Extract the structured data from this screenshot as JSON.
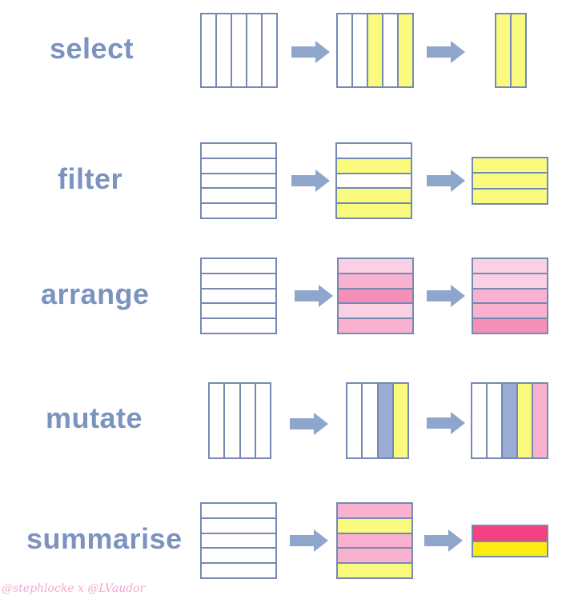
{
  "colors": {
    "border": "#7689b4",
    "verb_text": "#7b93bf",
    "arrow": "#8fa6cc",
    "yellow": "#fafa7e",
    "blue": "#9aacd1",
    "pink_light": "#fbd0e3",
    "pink_mid": "#f8b2d0",
    "pink_dark": "#f48fb9",
    "pink_summary": "#f3427f",
    "yellow_summary": "#fcea13",
    "credit_text": "#f0a6cf"
  },
  "rows": [
    {
      "verb": "select",
      "tables": [
        {
          "orientation": "cols",
          "cells": [
            "white",
            "white",
            "white",
            "white",
            "white"
          ]
        },
        {
          "orientation": "cols",
          "cells": [
            "white",
            "white",
            "yellow",
            "white",
            "yellow"
          ]
        },
        {
          "orientation": "cols",
          "cells": [
            "yellow",
            "yellow"
          ]
        }
      ]
    },
    {
      "verb": "filter",
      "tables": [
        {
          "orientation": "rows",
          "cells": [
            "white",
            "white",
            "white",
            "white",
            "white"
          ]
        },
        {
          "orientation": "rows",
          "cells": [
            "white",
            "yellow",
            "white",
            "yellow",
            "yellow"
          ]
        },
        {
          "orientation": "rows",
          "cells": [
            "yellow",
            "yellow",
            "yellow"
          ]
        }
      ]
    },
    {
      "verb": "arrange",
      "tables": [
        {
          "orientation": "rows",
          "cells": [
            "white",
            "white",
            "white",
            "white",
            "white"
          ]
        },
        {
          "orientation": "rows",
          "cells": [
            "pink_light",
            "pink_mid",
            "pink_dark",
            "pink_light",
            "pink_mid"
          ]
        },
        {
          "orientation": "rows",
          "cells": [
            "pink_light",
            "pink_light",
            "pink_mid",
            "pink_mid",
            "pink_dark"
          ]
        }
      ]
    },
    {
      "verb": "mutate",
      "tables": [
        {
          "orientation": "cols",
          "cells": [
            "white",
            "white",
            "white",
            "white"
          ]
        },
        {
          "orientation": "cols",
          "cells": [
            "white",
            "white",
            "blue",
            "yellow"
          ]
        },
        {
          "orientation": "cols",
          "cells": [
            "white",
            "white",
            "blue",
            "yellow",
            "pink_mid"
          ]
        }
      ]
    },
    {
      "verb": "summarise",
      "tables": [
        {
          "orientation": "rows",
          "cells": [
            "white",
            "white",
            "white",
            "white",
            "white"
          ]
        },
        {
          "orientation": "rows",
          "cells": [
            "pink_mid",
            "yellow",
            "pink_mid",
            "pink_mid",
            "yellow"
          ]
        },
        {
          "orientation": "rows",
          "cells": [
            "pink_summary",
            "yellow_summary"
          ]
        }
      ]
    }
  ],
  "credit": "@stephlocke x @LVaudor"
}
